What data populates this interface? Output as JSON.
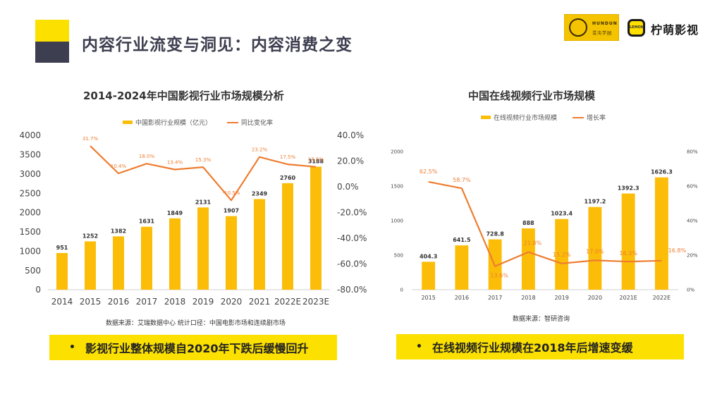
{
  "header": {
    "title": "内容行业流变与洞见：内容消费之变",
    "logo_hundun_en": "HUNDUN",
    "logo_hundun_cn": "混沌学园",
    "logo_nm": "LEMON",
    "logo_text": "柠萌影视"
  },
  "left": {
    "source": "数据来源：艾瑞数据中心   统计口径：中国电影市场和连续剧市场",
    "banner": "影视行业整体规模自2020年下跌后缓慢回升"
  },
  "right": {
    "source": "数据来源：智研咨询",
    "banner": "在线视频行业规模在2018年后增速变缓"
  },
  "chart_data": [
    {
      "type": "bar",
      "title": "2014-2024年中国影视行业市场规模分析",
      "categories": [
        "2014",
        "2015",
        "2016",
        "2017",
        "2018",
        "2019",
        "2020",
        "2021",
        "2022E",
        "2023E"
      ],
      "series": [
        {
          "name": "中国影视行业规模（亿元）",
          "type": "bar",
          "axis": "left",
          "values": [
            951,
            1252,
            1382,
            1631,
            1849,
            2131,
            1907,
            2349,
            2760,
            3188
          ],
          "labels": [
            "951",
            "1252",
            "1382",
            "1631",
            "1849",
            "2131",
            "1907",
            "2349",
            "2760",
            "3188"
          ]
        },
        {
          "name": "同比变化率",
          "type": "line",
          "axis": "right",
          "values": [
            null,
            31.7,
            10.4,
            18.0,
            13.4,
            15.3,
            -10.5,
            23.2,
            17.5,
            15.5
          ],
          "labels": [
            "",
            "31.7%",
            "10.4%",
            "18.0%",
            "13.4%",
            "15.3%",
            "-10.5%",
            "23.2%",
            "17.5%",
            "15.5%"
          ]
        }
      ],
      "ylim": [
        0,
        4000
      ],
      "yticks": [
        "0",
        "500",
        "1000",
        "1500",
        "2000",
        "2500",
        "3000",
        "3500",
        "4000"
      ],
      "y2lim": [
        -80,
        40
      ],
      "y2ticks": [
        "-80.0%",
        "-60.0%",
        "-40.0%",
        "-20.0%",
        "0.0%",
        "20.0%",
        "40.0%"
      ],
      "legend": "top",
      "grid": false
    },
    {
      "type": "bar",
      "title": "中国在线视频行业市场规模",
      "categories": [
        "2015",
        "2016",
        "2017",
        "2018",
        "2019",
        "2020",
        "2021E",
        "2022E"
      ],
      "series": [
        {
          "name": "在线视频行业市场规模",
          "type": "bar",
          "axis": "left",
          "values": [
            404.3,
            641.5,
            728.8,
            888,
            1023.4,
            1197.2,
            1392.3,
            1626.3
          ],
          "labels": [
            "404.3",
            "641.5",
            "728.8",
            "888",
            "1023.4",
            "1197.2",
            "1392.3",
            "1626.3"
          ]
        },
        {
          "name": "增长率",
          "type": "line",
          "axis": "right",
          "values": [
            62.5,
            58.7,
            13.6,
            21.8,
            15.2,
            17.0,
            16.3,
            16.8
          ],
          "labels": [
            "62.5%",
            "58.7%",
            "13.6%",
            "21.8%",
            "15.2%",
            "17.0%",
            "16.3%",
            "16.8%"
          ]
        }
      ],
      "ylim": [
        0,
        2000
      ],
      "yticks": [
        "0",
        "500",
        "1000",
        "1500",
        "2000"
      ],
      "y2lim": [
        0,
        80
      ],
      "y2ticks": [
        "0%",
        "20%",
        "40%",
        "60%",
        "80%"
      ],
      "legend": "top",
      "grid": false
    }
  ],
  "colors": {
    "bar": "#fbbd08",
    "line": "#ee7d31",
    "banner": "#fbe000",
    "navy": "#3d3e4f"
  }
}
